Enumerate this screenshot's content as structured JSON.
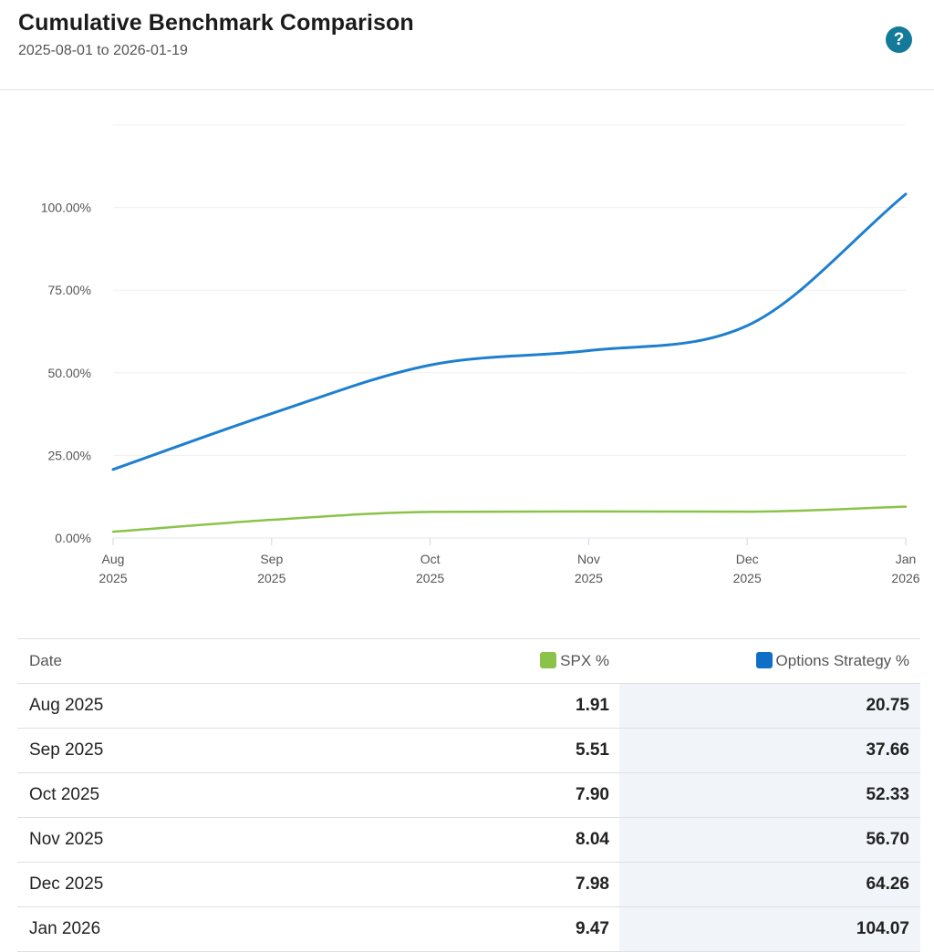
{
  "header": {
    "title": "Cumulative Benchmark Comparison",
    "date_range": "2025-08-01 to 2026-01-19",
    "help_label": "?"
  },
  "chart_data": {
    "type": "line",
    "title": "Cumulative Benchmark Comparison",
    "categories": [
      "Aug 2025",
      "Sep 2025",
      "Oct 2025",
      "Nov 2025",
      "Dec 2025",
      "Jan 2026"
    ],
    "x_tick_labels": [
      {
        "month": "Aug",
        "year": "2025"
      },
      {
        "month": "Sep",
        "year": "2025"
      },
      {
        "month": "Oct",
        "year": "2025"
      },
      {
        "month": "Nov",
        "year": "2025"
      },
      {
        "month": "Dec",
        "year": "2025"
      },
      {
        "month": "Jan",
        "year": "2026"
      }
    ],
    "y_ticks": [
      0,
      25,
      50,
      75,
      100
    ],
    "y_tick_labels": [
      "0.00%",
      "25.00%",
      "50.00%",
      "75.00%",
      "100.00%"
    ],
    "ylim": [
      0,
      125
    ],
    "grid": true,
    "series": [
      {
        "name": "SPX %",
        "color": "#8bc34a",
        "values": [
          1.91,
          5.51,
          7.9,
          8.04,
          7.98,
          9.47
        ]
      },
      {
        "name": "Options Strategy %",
        "color": "#1e7fcf",
        "values": [
          20.75,
          37.66,
          52.33,
          56.7,
          64.26,
          104.07
        ]
      }
    ]
  },
  "table": {
    "headers": {
      "date": "Date",
      "spx": "SPX %",
      "options": "Options Strategy %"
    },
    "legend_colors": {
      "spx": "#8bc34a",
      "options": "#0f6fc6"
    },
    "rows": [
      {
        "date": "Aug 2025",
        "spx": "1.91",
        "options": "20.75"
      },
      {
        "date": "Sep 2025",
        "spx": "5.51",
        "options": "37.66"
      },
      {
        "date": "Oct 2025",
        "spx": "7.90",
        "options": "52.33"
      },
      {
        "date": "Nov 2025",
        "spx": "8.04",
        "options": "56.70"
      },
      {
        "date": "Dec 2025",
        "spx": "7.98",
        "options": "64.26"
      },
      {
        "date": "Jan 2026",
        "spx": "9.47",
        "options": "104.07"
      }
    ]
  }
}
